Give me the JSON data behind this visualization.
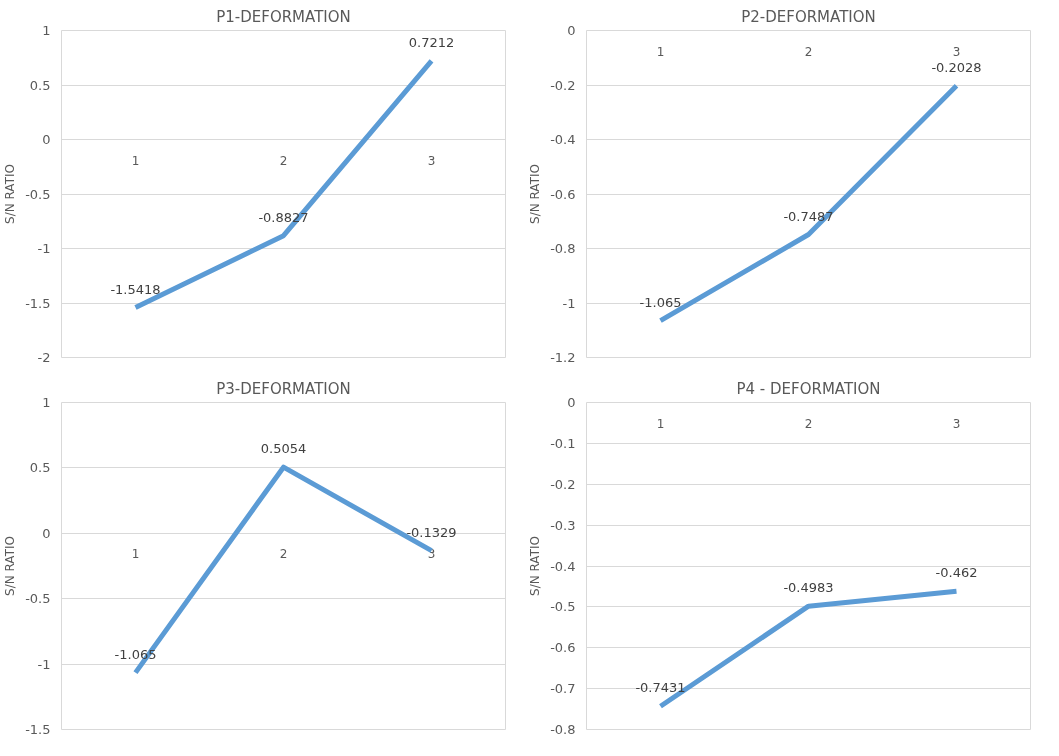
{
  "chart_data": [
    {
      "type": "line",
      "title": "P1-DEFORMATION",
      "ylabel": "S/N RATIO",
      "categories": [
        "1",
        "2",
        "3"
      ],
      "series": [
        {
          "color": "#5b9bd5",
          "values": [
            -1.5418,
            -0.8827,
            0.7212
          ]
        }
      ],
      "ylim": [
        -2,
        1
      ],
      "yticks": [
        -2,
        -1.5,
        -1,
        -0.5,
        0,
        0.5,
        1
      ],
      "grid": "y",
      "data_labels": true,
      "marker": "none",
      "line_style": "solid"
    },
    {
      "type": "line",
      "title": "P2-DEFORMATION",
      "ylabel": "S/N RATIO",
      "categories": [
        "1",
        "2",
        "3"
      ],
      "series": [
        {
          "color": "#5b9bd5",
          "values": [
            -1.065,
            -0.7487,
            -0.2028
          ]
        }
      ],
      "ylim": [
        -1.2,
        0
      ],
      "yticks": [
        -1.2,
        -1,
        -0.8,
        -0.6,
        -0.4,
        -0.2,
        0
      ],
      "grid": "y",
      "data_labels": true,
      "marker": "none",
      "line_style": "solid"
    },
    {
      "type": "line",
      "title": "P3-DEFORMATION",
      "ylabel": "S/N RATIO",
      "categories": [
        "1",
        "2",
        "3"
      ],
      "series": [
        {
          "color": "#5b9bd5",
          "values": [
            -1.065,
            0.5054,
            -0.1329
          ]
        }
      ],
      "ylim": [
        -1.5,
        1
      ],
      "yticks": [
        -1.5,
        -1,
        -0.5,
        0,
        0.5,
        1
      ],
      "grid": "y",
      "data_labels": true,
      "marker": "none",
      "line_style": "solid"
    },
    {
      "type": "line",
      "title": "P4 - DEFORMATION",
      "ylabel": "S/N RATIO",
      "categories": [
        "1",
        "2",
        "3"
      ],
      "series": [
        {
          "color": "#5b9bd5",
          "values": [
            -0.7431,
            -0.4983,
            -0.462
          ]
        }
      ],
      "ylim": [
        -0.8,
        0
      ],
      "yticks": [
        -0.8,
        -0.7,
        -0.6,
        -0.5,
        -0.4,
        -0.3,
        -0.2,
        -0.1,
        0
      ],
      "grid": "y",
      "data_labels": true,
      "marker": "none",
      "line_style": "solid"
    }
  ]
}
